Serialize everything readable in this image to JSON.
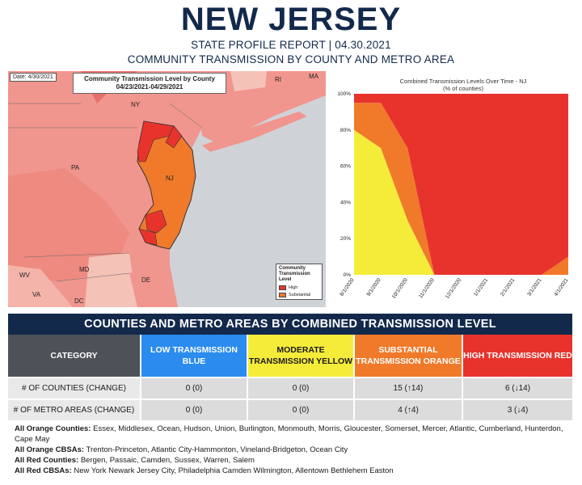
{
  "header": {
    "title": "NEW JERSEY",
    "subtitle": "STATE PROFILE REPORT | 04.30.2021",
    "subtitle2": "COMMUNITY TRANSMISSION BY COUNTY AND METRO AREA"
  },
  "map": {
    "date": "Date: 4/30/2021",
    "title": "Community Transmission Level by County",
    "date_range": "04/23/2021-04/29/2021",
    "labels": {
      "ny": "NY",
      "pa": "PA",
      "nj": "NJ",
      "md": "MD",
      "de": "DE",
      "wv": "WV",
      "va": "VA",
      "dc": "DC",
      "ri": "RI",
      "ma": "MA"
    },
    "legend": {
      "title": "Community Transmission Level",
      "high": "High",
      "substantial": "Substantial"
    },
    "colors": {
      "high": "#e8332d",
      "substantial": "#f07a2a",
      "water": "#cfd3d8"
    }
  },
  "chart_data": {
    "type": "area",
    "title": "Combined Transmission Levels Over Time - NJ",
    "subtitle": "(% of counties)",
    "x": [
      "8/1/2020",
      "9/1/2020",
      "10/1/2020",
      "11/1/2020",
      "12/1/2020",
      "1/1/2021",
      "2/1/2021",
      "3/1/2021",
      "4/1/2021"
    ],
    "ylim": [
      0,
      100
    ],
    "yticks": [
      "0%",
      "20%",
      "40%",
      "60%",
      "80%",
      "100%"
    ],
    "series": [
      {
        "color": "#2b8bee",
        "values": [
          0,
          0,
          0,
          0,
          0,
          0,
          0,
          0,
          0
        ]
      },
      {
        "color": "#f5ec3a",
        "values": [
          80,
          70,
          30,
          0,
          0,
          0,
          0,
          0,
          0
        ]
      },
      {
        "color": "#f07a2a",
        "values": [
          15,
          25,
          40,
          0,
          0,
          0,
          0,
          0,
          10
        ]
      },
      {
        "color": "#e8332d",
        "values": [
          5,
          5,
          30,
          100,
          100,
          100,
          100,
          100,
          90
        ]
      }
    ]
  },
  "table": {
    "banner": "COUNTIES AND METRO AREAS BY COMBINED TRANSMISSION LEVEL",
    "headers": {
      "category": "CATEGORY",
      "low": "LOW TRANSMISSION BLUE",
      "moderate": "MODERATE TRANSMISSION YELLOW",
      "substantial": "SUBSTANTIAL TRANSMISSION ORANGE",
      "high": "HIGH TRANSMISSION RED"
    },
    "rows": [
      {
        "label": "# OF COUNTIES (CHANGE)",
        "low": "0 (0)",
        "moderate": "0 (0)",
        "substantial": "15 (↑14)",
        "high": "6 (↓14)"
      },
      {
        "label": "# OF METRO AREAS (CHANGE)",
        "low": "0 (0)",
        "moderate": "0 (0)",
        "substantial": "4 (↑4)",
        "high": "3 (↓4)"
      }
    ]
  },
  "notes": {
    "orange_counties_label": "All Orange Counties:",
    "orange_counties": "Essex, Middlesex, Ocean, Hudson, Union, Burlington, Monmouth, Morris, Gloucester, Somerset, Mercer, Atlantic, Cumberland, Hunterdon, Cape May",
    "orange_cbsas_label": "All Orange CBSAs:",
    "orange_cbsas": "Trenton-Princeton, Atlantic City-Hammonton, Vineland-Bridgeton, Ocean City",
    "red_counties_label": "All Red Counties:",
    "red_counties": "Bergen, Passaic, Camden, Sussex, Warren, Salem",
    "red_cbsas_label": "All Red CBSAs:",
    "red_cbsas": "New York Newark Jersey City, Philadelphia Camden Wilmington, Allentown Bethlehem Easton"
  }
}
